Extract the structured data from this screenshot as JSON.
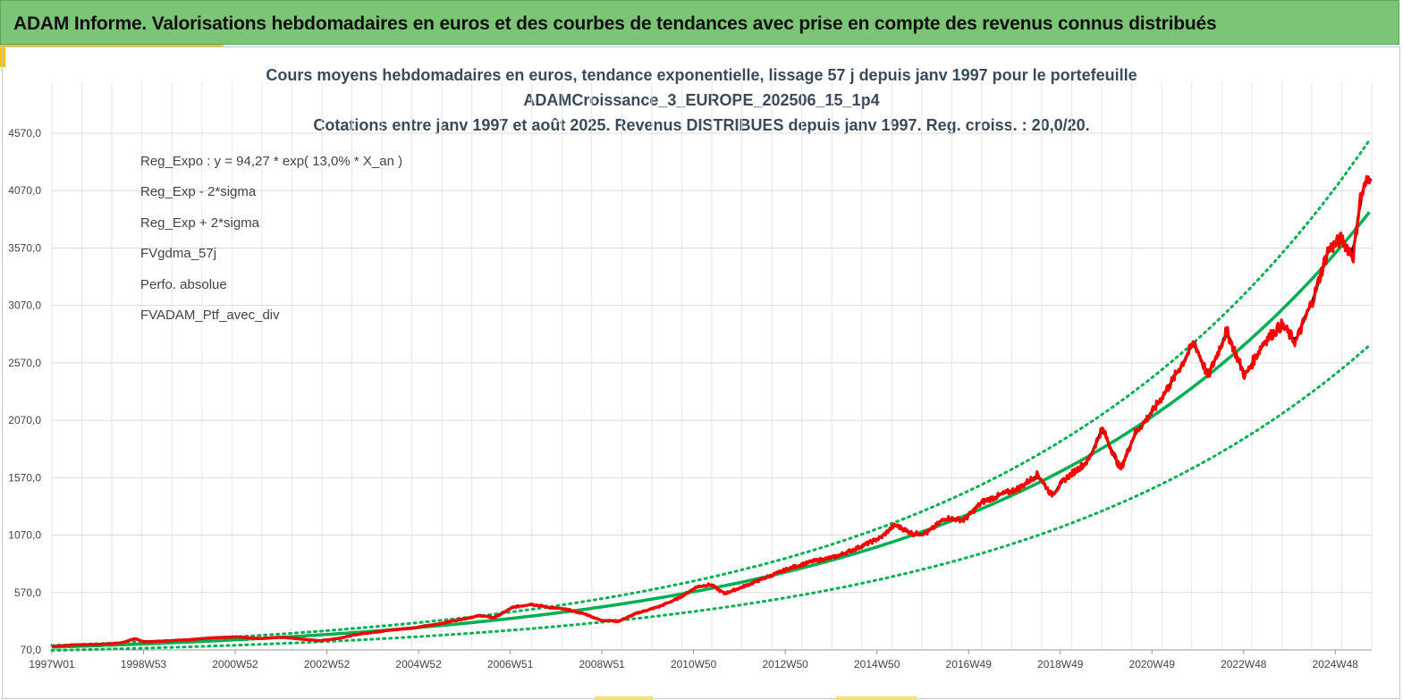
{
  "header": {
    "title": "ADAM Informe. Valorisations hebdomadaires en euros et des courbes de tendances avec prise en compte des revenus connus distribués"
  },
  "chart_data": {
    "type": "line",
    "title_lines": [
      "Cours moyens hebdomadaires  en euros, tendance exponentielle, lissage 57 j depuis janv 1997 pour le portefeuille",
      "ADAMCroissance_3_EUROPE_202506_15_1p4",
      "Cotations  entre janv 1997 et août 2025. Revenus DISTRIBUES depuis janv 1997. Reg. croiss. : 20,0/20."
    ],
    "xlabel": "",
    "ylabel": "",
    "x_tick_labels": [
      "1997W01",
      "1998W53",
      "2000W52",
      "2002W52",
      "2004W52",
      "2006W51",
      "2008W51",
      "2010W50",
      "2012W50",
      "2014W50",
      "2016W49",
      "2018W49",
      "2020W49",
      "2022W48",
      "2024W48"
    ],
    "y_tick_labels": [
      "70,0",
      "570,0",
      "1070,0",
      "1570,0",
      "2070,0",
      "2570,0",
      "3070,0",
      "3570,0",
      "4070,0",
      "4570,0"
    ],
    "ylim": [
      70,
      4800
    ],
    "xlim_years": [
      1997.0,
      2025.65
    ],
    "grid": true,
    "legend_position": "top-left",
    "series": [
      {
        "name": "Reg_Expo : y = 94,27 * exp( 13,0% *  X_an )",
        "color": "#00b050",
        "style": "solid",
        "formula": {
          "a": 94.27,
          "rate": 0.13
        }
      },
      {
        "name": "Reg_Exp - 2*sigma",
        "color": "#00b050",
        "style": "dotted",
        "formula": {
          "a": 66.1,
          "rate": 0.13
        }
      },
      {
        "name": "Reg_Exp + 2*sigma",
        "color": "#00b050",
        "style": "dotted",
        "formula": {
          "a": 109.5,
          "rate": 0.13
        }
      },
      {
        "name": "FVgdma_57j",
        "color": "#000000",
        "style": "solid"
      },
      {
        "name": "Perfo. absolue",
        "color": "#ff0000",
        "style": "dotted"
      },
      {
        "name": "FVADAM_Ptf_avec_div",
        "color": "#ff0000",
        "style": "solid"
      }
    ],
    "portfolio_points": [
      [
        1997.0,
        100
      ],
      [
        1997.5,
        115
      ],
      [
        1998.0,
        118
      ],
      [
        1998.5,
        130
      ],
      [
        1998.8,
        170
      ],
      [
        1999.0,
        140
      ],
      [
        1999.5,
        150
      ],
      [
        2000.0,
        160
      ],
      [
        2000.5,
        175
      ],
      [
        2001.0,
        185
      ],
      [
        2001.5,
        170
      ],
      [
        2002.0,
        180
      ],
      [
        2002.4,
        165
      ],
      [
        2002.8,
        150
      ],
      [
        2003.2,
        170
      ],
      [
        2003.7,
        210
      ],
      [
        2004.3,
        240
      ],
      [
        2004.8,
        260
      ],
      [
        2005.3,
        290
      ],
      [
        2005.8,
        330
      ],
      [
        2006.3,
        370
      ],
      [
        2006.6,
        350
      ],
      [
        2007.0,
        440
      ],
      [
        2007.4,
        470
      ],
      [
        2007.8,
        440
      ],
      [
        2008.2,
        420
      ],
      [
        2008.6,
        380
      ],
      [
        2008.9,
        330
      ],
      [
        2009.3,
        320
      ],
      [
        2009.7,
        390
      ],
      [
        2010.2,
        450
      ],
      [
        2010.6,
        520
      ],
      [
        2011.0,
        620
      ],
      [
        2011.3,
        640
      ],
      [
        2011.6,
        560
      ],
      [
        2012.0,
        620
      ],
      [
        2012.5,
        700
      ],
      [
        2013.0,
        780
      ],
      [
        2013.5,
        840
      ],
      [
        2014.0,
        880
      ],
      [
        2014.5,
        960
      ],
      [
        2015.0,
        1050
      ],
      [
        2015.3,
        1160
      ],
      [
        2015.7,
        1080
      ],
      [
        2016.0,
        1090
      ],
      [
        2016.4,
        1220
      ],
      [
        2016.8,
        1200
      ],
      [
        2017.2,
        1360
      ],
      [
        2017.6,
        1420
      ],
      [
        2018.0,
        1480
      ],
      [
        2018.4,
        1600
      ],
      [
        2018.7,
        1420
      ],
      [
        2019.0,
        1560
      ],
      [
        2019.5,
        1720
      ],
      [
        2019.8,
        2000
      ],
      [
        2020.2,
        1640
      ],
      [
        2020.5,
        1950
      ],
      [
        2020.9,
        2150
      ],
      [
        2021.3,
        2400
      ],
      [
        2021.8,
        2750
      ],
      [
        2022.1,
        2450
      ],
      [
        2022.5,
        2850
      ],
      [
        2022.9,
        2450
      ],
      [
        2023.3,
        2750
      ],
      [
        2023.7,
        2900
      ],
      [
        2024.0,
        2750
      ],
      [
        2024.4,
        3150
      ],
      [
        2024.7,
        3550
      ],
      [
        2025.0,
        3650
      ],
      [
        2025.25,
        3500
      ],
      [
        2025.4,
        4000
      ],
      [
        2025.65,
        4250
      ]
    ]
  }
}
